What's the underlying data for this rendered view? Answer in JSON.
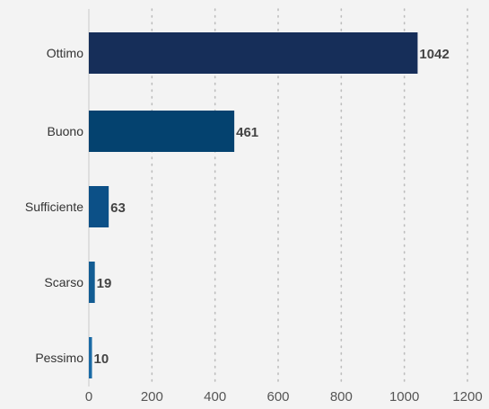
{
  "chart_data": {
    "type": "bar",
    "orientation": "horizontal",
    "title": "",
    "xlabel": "",
    "ylabel": "",
    "categories": [
      "Ottimo",
      "Buono",
      "Sufficiente",
      "Scarso",
      "Pessimo"
    ],
    "values": [
      1042,
      461,
      63,
      19,
      10
    ],
    "xlim": [
      0,
      1200
    ],
    "x_ticks": [
      0,
      200,
      400,
      600,
      800,
      1000,
      1200
    ],
    "grid": "vertical-dotted",
    "data_labels": true,
    "colors": [
      "#162e59",
      "#04426f",
      "#0c5087",
      "#125c93",
      "#1a6aa5"
    ],
    "background": "#f3f3f3"
  }
}
